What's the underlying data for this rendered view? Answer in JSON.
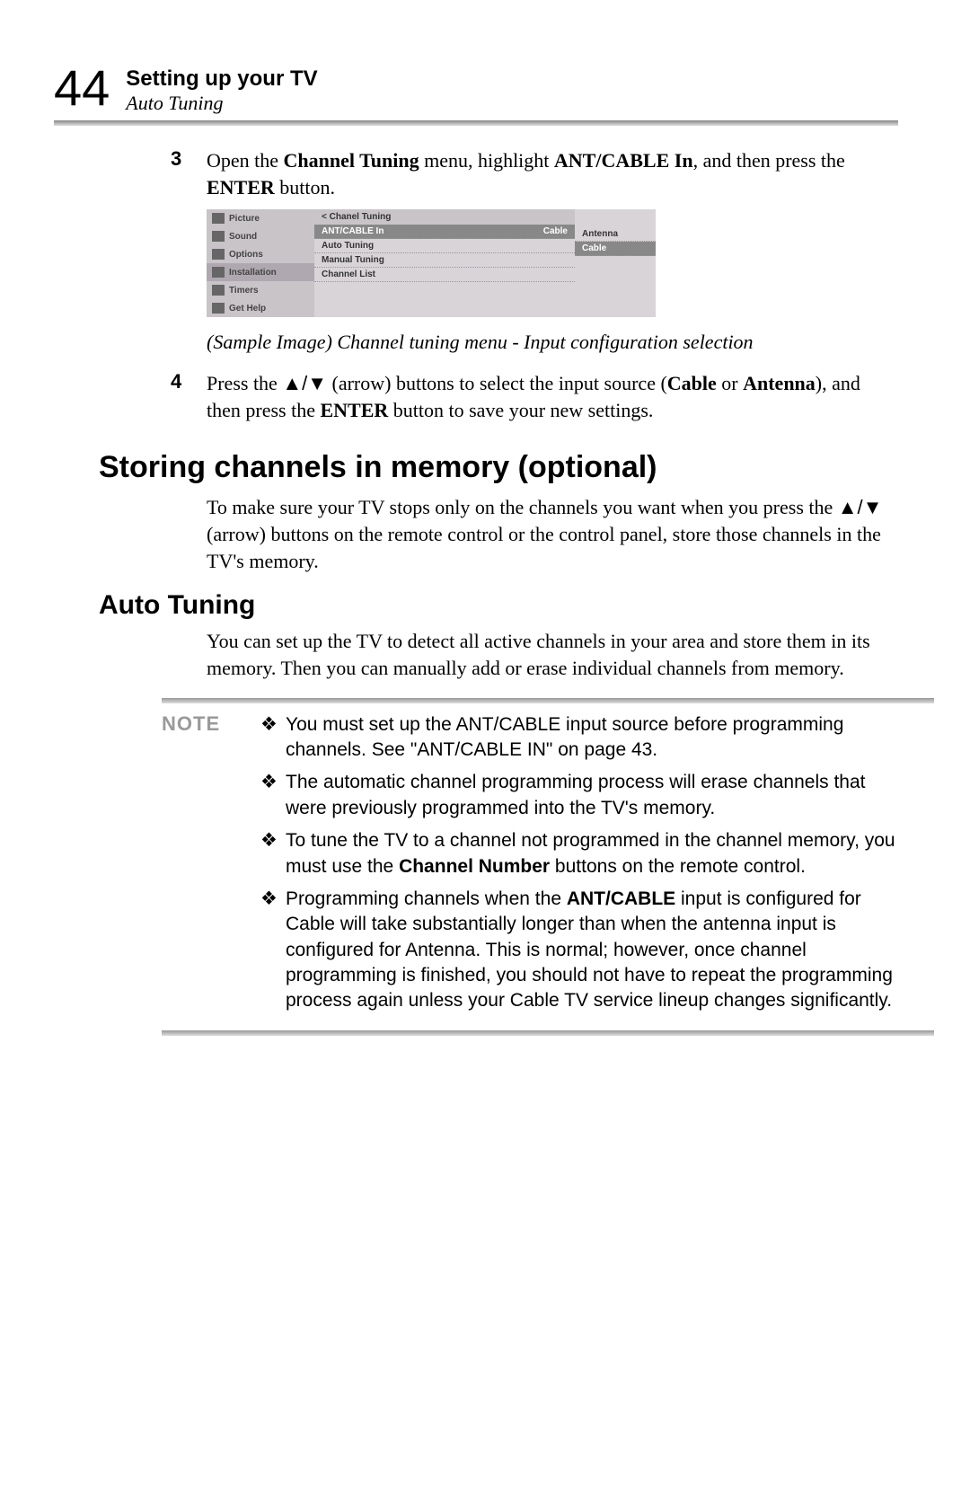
{
  "page_number": "44",
  "header": {
    "title": "Setting up your TV",
    "subtitle": "Auto Tuning"
  },
  "step3": {
    "num": "3",
    "text": "Open the <b>Channel Tuning</b> menu, highlight <b>ANT/CABLE In</b>, and then press the <b>ENTER</b> button."
  },
  "menu": {
    "sidebar": [
      "Picture",
      "Sound",
      "Options",
      "Installation",
      "Timers",
      "Get Help"
    ],
    "sidebar_selected_index": 3,
    "title": "< Chanel Tuning",
    "rows": [
      {
        "label": "ANT/CABLE In",
        "value": "Cable",
        "selected": true
      },
      {
        "label": "Auto Tuning",
        "value": "",
        "selected": false
      },
      {
        "label": "Manual Tuning",
        "value": "",
        "selected": false
      },
      {
        "label": "Channel List",
        "value": "",
        "selected": false
      }
    ],
    "options": [
      {
        "label": "Antenna",
        "selected": false
      },
      {
        "label": "Cable",
        "selected": true
      }
    ],
    "colors": {
      "sidebar_bg": "#c8c4c8",
      "main_bg": "#d8d4d8",
      "sel_bg": "#888888"
    }
  },
  "caption": "(Sample Image) Channel tuning menu - Input configuration selection",
  "step4": {
    "num": "4",
    "text": "Press the <span class=\"arrow-sym\">▲/▼</span> (arrow) buttons to select the input source (<b>Cable</b> or <b>Antenna</b>), and then press the <b>ENTER</b> button to save your new settings."
  },
  "section1": {
    "heading": "Storing channels in memory (optional)",
    "text": "To make sure your TV stops only on the channels you want when you press the <span class=\"arrow-sym\">▲/▼</span> (arrow) buttons on the remote control or the control panel, store those channels in the TV's memory."
  },
  "section2": {
    "heading": "Auto Tuning",
    "text": "You can set up the TV to detect all active channels in your area and store them in its memory. Then you can manually add or erase individual channels from memory."
  },
  "note": {
    "label": "NOTE",
    "bullet": "❖",
    "items": [
      "You must set up the ANT/CABLE input source before programming channels. See \"ANT/CABLE IN\" on page 43.",
      "The automatic channel programming process will erase channels that were previously programmed into the TV's memory.",
      "To tune the TV to a channel not programmed in the channel memory, you must use the <b>Channel Number</b> buttons on the remote control.",
      "Programming channels when the <b>ANT/CABLE</b> input is configured for Cable will take substantially longer than when the antenna input is configured for Antenna. This is normal; however, once channel programming is finished, you should not have to repeat the programming process again unless your Cable TV service lineup changes significantly."
    ]
  }
}
